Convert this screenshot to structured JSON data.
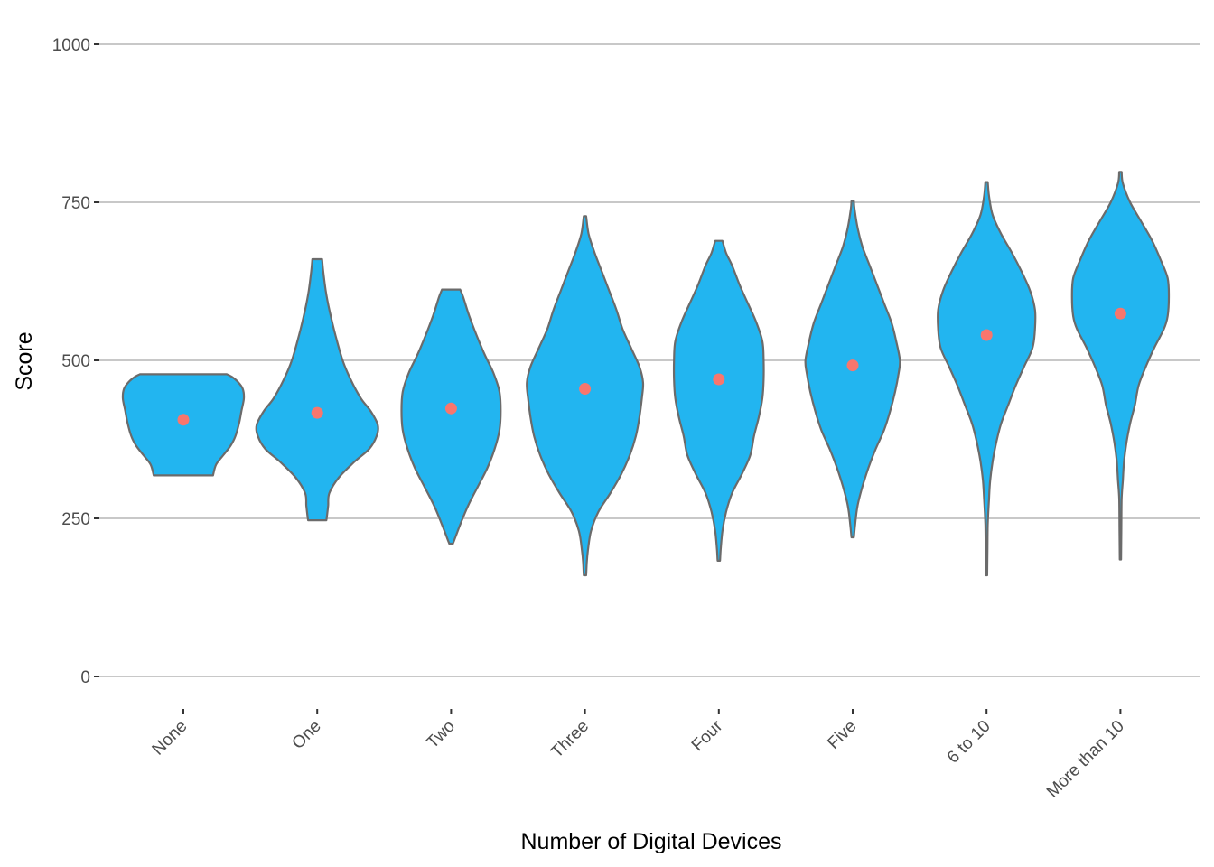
{
  "chart_data": {
    "type": "violin",
    "title": "",
    "xlabel": "Number of Digital Devices",
    "ylabel": "Score",
    "ylim": [
      0,
      1000
    ],
    "yticks": [
      0,
      250,
      500,
      750,
      1000
    ],
    "grid": "horizontal major gridlines",
    "legend": "none",
    "colors": {
      "violin_fill": "#22b5f0",
      "violin_stroke": "#6b6b6b",
      "mean_point": "#f8766d",
      "grid": "#c8c8c8"
    },
    "categories": [
      "None",
      "One",
      "Two",
      "Three",
      "Four",
      "Five",
      "6 to 10",
      "More than 10"
    ],
    "means": [
      406,
      417,
      424,
      455,
      470,
      492,
      540,
      574
    ],
    "violins": [
      {
        "category": "None",
        "min": 318,
        "max": 478,
        "profile": [
          [
            318,
            0.49
          ],
          [
            335,
            0.54
          ],
          [
            350,
            0.66
          ],
          [
            365,
            0.78
          ],
          [
            380,
            0.86
          ],
          [
            400,
            0.92
          ],
          [
            420,
            0.96
          ],
          [
            440,
            1.0
          ],
          [
            455,
            0.98
          ],
          [
            466,
            0.9
          ],
          [
            474,
            0.8
          ],
          [
            478,
            0.72
          ]
        ]
      },
      {
        "category": "One",
        "min": 247,
        "max": 660,
        "profile": [
          [
            247,
            0.15
          ],
          [
            253,
            0.16
          ],
          [
            270,
            0.18
          ],
          [
            290,
            0.2
          ],
          [
            315,
            0.36
          ],
          [
            340,
            0.62
          ],
          [
            360,
            0.86
          ],
          [
            380,
            0.98
          ],
          [
            398,
            1.0
          ],
          [
            420,
            0.88
          ],
          [
            440,
            0.72
          ],
          [
            470,
            0.55
          ],
          [
            500,
            0.42
          ],
          [
            540,
            0.3
          ],
          [
            580,
            0.2
          ],
          [
            610,
            0.14
          ],
          [
            640,
            0.1
          ],
          [
            660,
            0.08
          ]
        ]
      },
      {
        "category": "Two",
        "min": 210,
        "max": 612,
        "profile": [
          [
            210,
            0.03
          ],
          [
            215,
            0.05
          ],
          [
            240,
            0.15
          ],
          [
            270,
            0.28
          ],
          [
            300,
            0.44
          ],
          [
            330,
            0.6
          ],
          [
            360,
            0.72
          ],
          [
            390,
            0.8
          ],
          [
            420,
            0.82
          ],
          [
            450,
            0.8
          ],
          [
            480,
            0.7
          ],
          [
            510,
            0.55
          ],
          [
            540,
            0.42
          ],
          [
            570,
            0.3
          ],
          [
            600,
            0.2
          ],
          [
            612,
            0.15
          ]
        ]
      },
      {
        "category": "Three",
        "min": 160,
        "max": 728,
        "profile": [
          [
            160,
            0.02
          ],
          [
            180,
            0.03
          ],
          [
            200,
            0.05
          ],
          [
            230,
            0.1
          ],
          [
            260,
            0.22
          ],
          [
            290,
            0.42
          ],
          [
            320,
            0.6
          ],
          [
            350,
            0.74
          ],
          [
            380,
            0.84
          ],
          [
            410,
            0.9
          ],
          [
            440,
            0.94
          ],
          [
            465,
            0.96
          ],
          [
            490,
            0.9
          ],
          [
            520,
            0.76
          ],
          [
            550,
            0.62
          ],
          [
            580,
            0.52
          ],
          [
            610,
            0.4
          ],
          [
            640,
            0.28
          ],
          [
            670,
            0.16
          ],
          [
            700,
            0.06
          ],
          [
            728,
            0.02
          ]
        ]
      },
      {
        "category": "Four",
        "min": 183,
        "max": 689,
        "profile": [
          [
            183,
            0.02
          ],
          [
            200,
            0.03
          ],
          [
            230,
            0.06
          ],
          [
            260,
            0.12
          ],
          [
            290,
            0.22
          ],
          [
            320,
            0.38
          ],
          [
            350,
            0.52
          ],
          [
            380,
            0.58
          ],
          [
            410,
            0.66
          ],
          [
            440,
            0.72
          ],
          [
            470,
            0.74
          ],
          [
            500,
            0.74
          ],
          [
            530,
            0.72
          ],
          [
            560,
            0.62
          ],
          [
            590,
            0.48
          ],
          [
            620,
            0.34
          ],
          [
            650,
            0.22
          ],
          [
            670,
            0.12
          ],
          [
            689,
            0.06
          ]
        ]
      },
      {
        "category": "Five",
        "min": 220,
        "max": 752,
        "profile": [
          [
            220,
            0.02
          ],
          [
            240,
            0.04
          ],
          [
            270,
            0.08
          ],
          [
            300,
            0.16
          ],
          [
            330,
            0.26
          ],
          [
            360,
            0.38
          ],
          [
            390,
            0.52
          ],
          [
            420,
            0.62
          ],
          [
            450,
            0.7
          ],
          [
            480,
            0.76
          ],
          [
            500,
            0.78
          ],
          [
            530,
            0.72
          ],
          [
            560,
            0.64
          ],
          [
            590,
            0.52
          ],
          [
            620,
            0.4
          ],
          [
            650,
            0.28
          ],
          [
            680,
            0.16
          ],
          [
            710,
            0.08
          ],
          [
            740,
            0.03
          ],
          [
            752,
            0.02
          ]
        ]
      },
      {
        "category": "6 to 10",
        "min": 160,
        "max": 782,
        "profile": [
          [
            160,
            0.01
          ],
          [
            200,
            0.015
          ],
          [
            240,
            0.02
          ],
          [
            280,
            0.04
          ],
          [
            310,
            0.06
          ],
          [
            340,
            0.1
          ],
          [
            370,
            0.16
          ],
          [
            400,
            0.24
          ],
          [
            430,
            0.36
          ],
          [
            460,
            0.48
          ],
          [
            490,
            0.62
          ],
          [
            520,
            0.76
          ],
          [
            550,
            0.8
          ],
          [
            580,
            0.8
          ],
          [
            610,
            0.72
          ],
          [
            640,
            0.58
          ],
          [
            670,
            0.42
          ],
          [
            700,
            0.24
          ],
          [
            730,
            0.1
          ],
          [
            760,
            0.04
          ],
          [
            782,
            0.02
          ]
        ]
      },
      {
        "category": "More than 10",
        "min": 185,
        "max": 798,
        "profile": [
          [
            185,
            0.01
          ],
          [
            230,
            0.015
          ],
          [
            280,
            0.02
          ],
          [
            310,
            0.04
          ],
          [
            340,
            0.06
          ],
          [
            370,
            0.1
          ],
          [
            400,
            0.16
          ],
          [
            430,
            0.24
          ],
          [
            460,
            0.3
          ],
          [
            490,
            0.42
          ],
          [
            520,
            0.56
          ],
          [
            550,
            0.72
          ],
          [
            570,
            0.78
          ],
          [
            600,
            0.8
          ],
          [
            630,
            0.78
          ],
          [
            660,
            0.66
          ],
          [
            690,
            0.52
          ],
          [
            720,
            0.34
          ],
          [
            750,
            0.16
          ],
          [
            780,
            0.04
          ],
          [
            798,
            0.02
          ]
        ]
      }
    ]
  }
}
